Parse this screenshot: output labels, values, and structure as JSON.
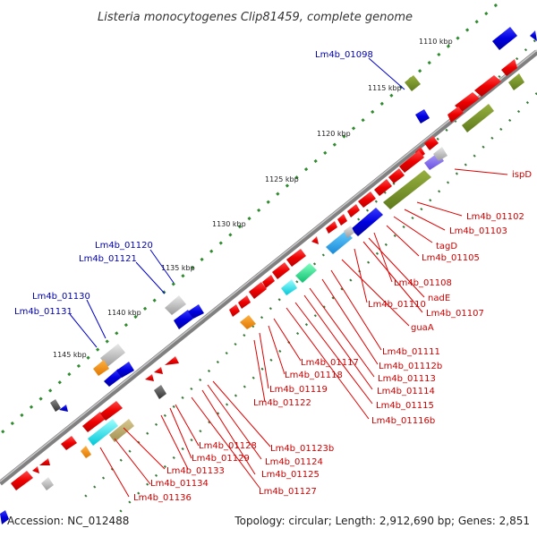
{
  "title": "Listeria monocytogenes Clip81459, complete genome",
  "footer": {
    "accession": "Accession: NC_012488",
    "stats": "Topology: circular; Length: 2,912,690 bp; Genes: 2,851"
  },
  "ticks": [
    "1110 kbp",
    "1115 kbp",
    "1120 kbp",
    "1125 kbp",
    "1130 kbp",
    "1135 kbp",
    "1140 kbp",
    "1145 kbp"
  ],
  "blue_labels": [
    "Lm4b_01098",
    "Lm4b_01120",
    "Lm4b_01121",
    "Lm4b_01130",
    "Lm4b_01131"
  ],
  "red_labels": [
    "ispD",
    "Lm4b_01102",
    "Lm4b_01103",
    "tagD",
    "Lm4b_01105",
    "Lm4b_01108",
    "nadE",
    "Lm4b_01107",
    "Lm4b_01110",
    "guaA",
    "Lm4b_01111",
    "Lm4b_01112b",
    "Lm4b_01117",
    "Lm4b_01113",
    "Lm4b_01118",
    "Lm4b_01114",
    "Lm4b_01119",
    "Lm4b_01115",
    "Lm4b_01122",
    "Lm4b_01116b",
    "Lm4b_01128",
    "Lm4b_01123b",
    "Lm4b_01129",
    "Lm4b_01124",
    "Lm4b_01133",
    "Lm4b_01125",
    "Lm4b_01134",
    "Lm4b_01127",
    "Lm4b_01136"
  ],
  "colors": {
    "forward_gene": "#ee0000",
    "reverse_gene": "#0000dd",
    "backbone": "#808080",
    "label_red": "#cc0000",
    "label_blue": "#0000aa"
  }
}
